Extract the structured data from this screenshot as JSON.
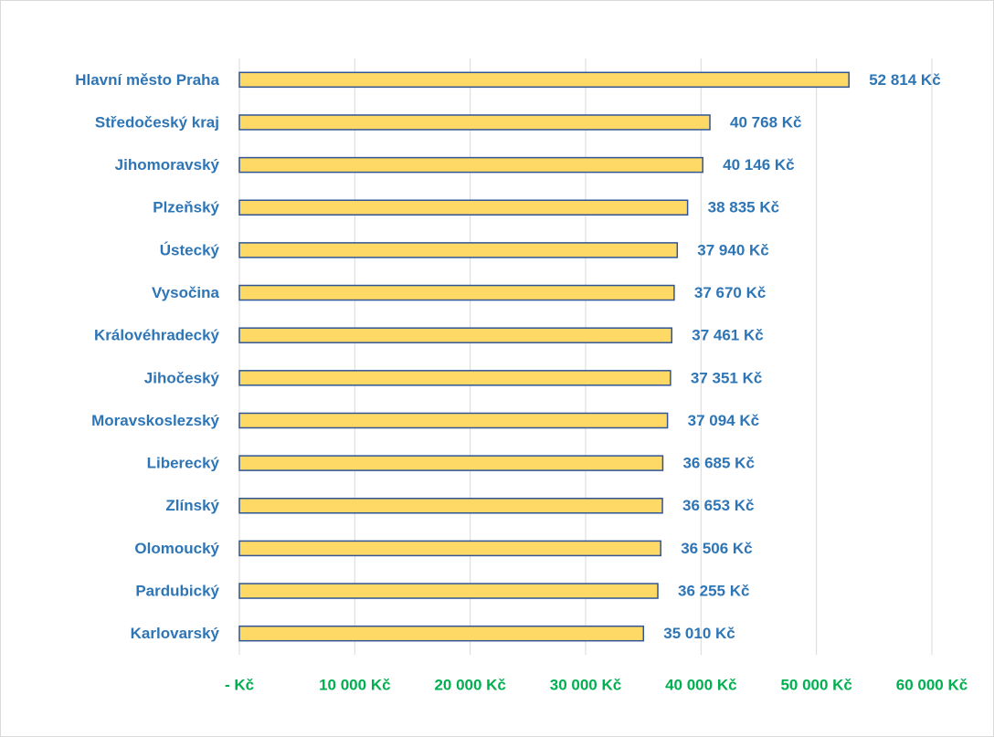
{
  "chart_data": {
    "type": "bar",
    "orientation": "horizontal",
    "categories": [
      "Hlavní město Praha",
      "Středočeský kraj",
      "Jihomoravský",
      "Plzeňský",
      "Ústecký",
      "Vysočina",
      "Královéhradecký",
      "Jihočeský",
      "Moravskoslezský",
      "Liberecký",
      "Zlínský",
      "Olomoucký",
      "Pardubický",
      "Karlovarský"
    ],
    "values": [
      52814,
      40768,
      40146,
      38835,
      37940,
      37670,
      37461,
      37351,
      37094,
      36685,
      36653,
      36506,
      36255,
      35010
    ],
    "value_labels": [
      "52 814 Kč",
      "40 768 Kč",
      "40 146 Kč",
      "38 835 Kč",
      "37 940 Kč",
      "37 670 Kč",
      "37 461 Kč",
      "37 351 Kč",
      "37 094 Kč",
      "36 685 Kč",
      "36 653 Kč",
      "36 506 Kč",
      "36 255 Kč",
      "35 010 Kč"
    ],
    "color": "#ffd966",
    "xlim": [
      0,
      60000
    ],
    "xticks": [
      {
        "value": 0,
        "label": "-   Kč"
      },
      {
        "value": 10000,
        "label": "10 000 Kč"
      },
      {
        "value": 20000,
        "label": "20 000 Kč"
      },
      {
        "value": 30000,
        "label": "30 000 Kč"
      },
      {
        "value": 40000,
        "label": "40 000 Kč"
      },
      {
        "value": 50000,
        "label": "50 000 Kč"
      },
      {
        "value": 60000,
        "label": "60 000 Kč"
      }
    ],
    "grid": true
  }
}
